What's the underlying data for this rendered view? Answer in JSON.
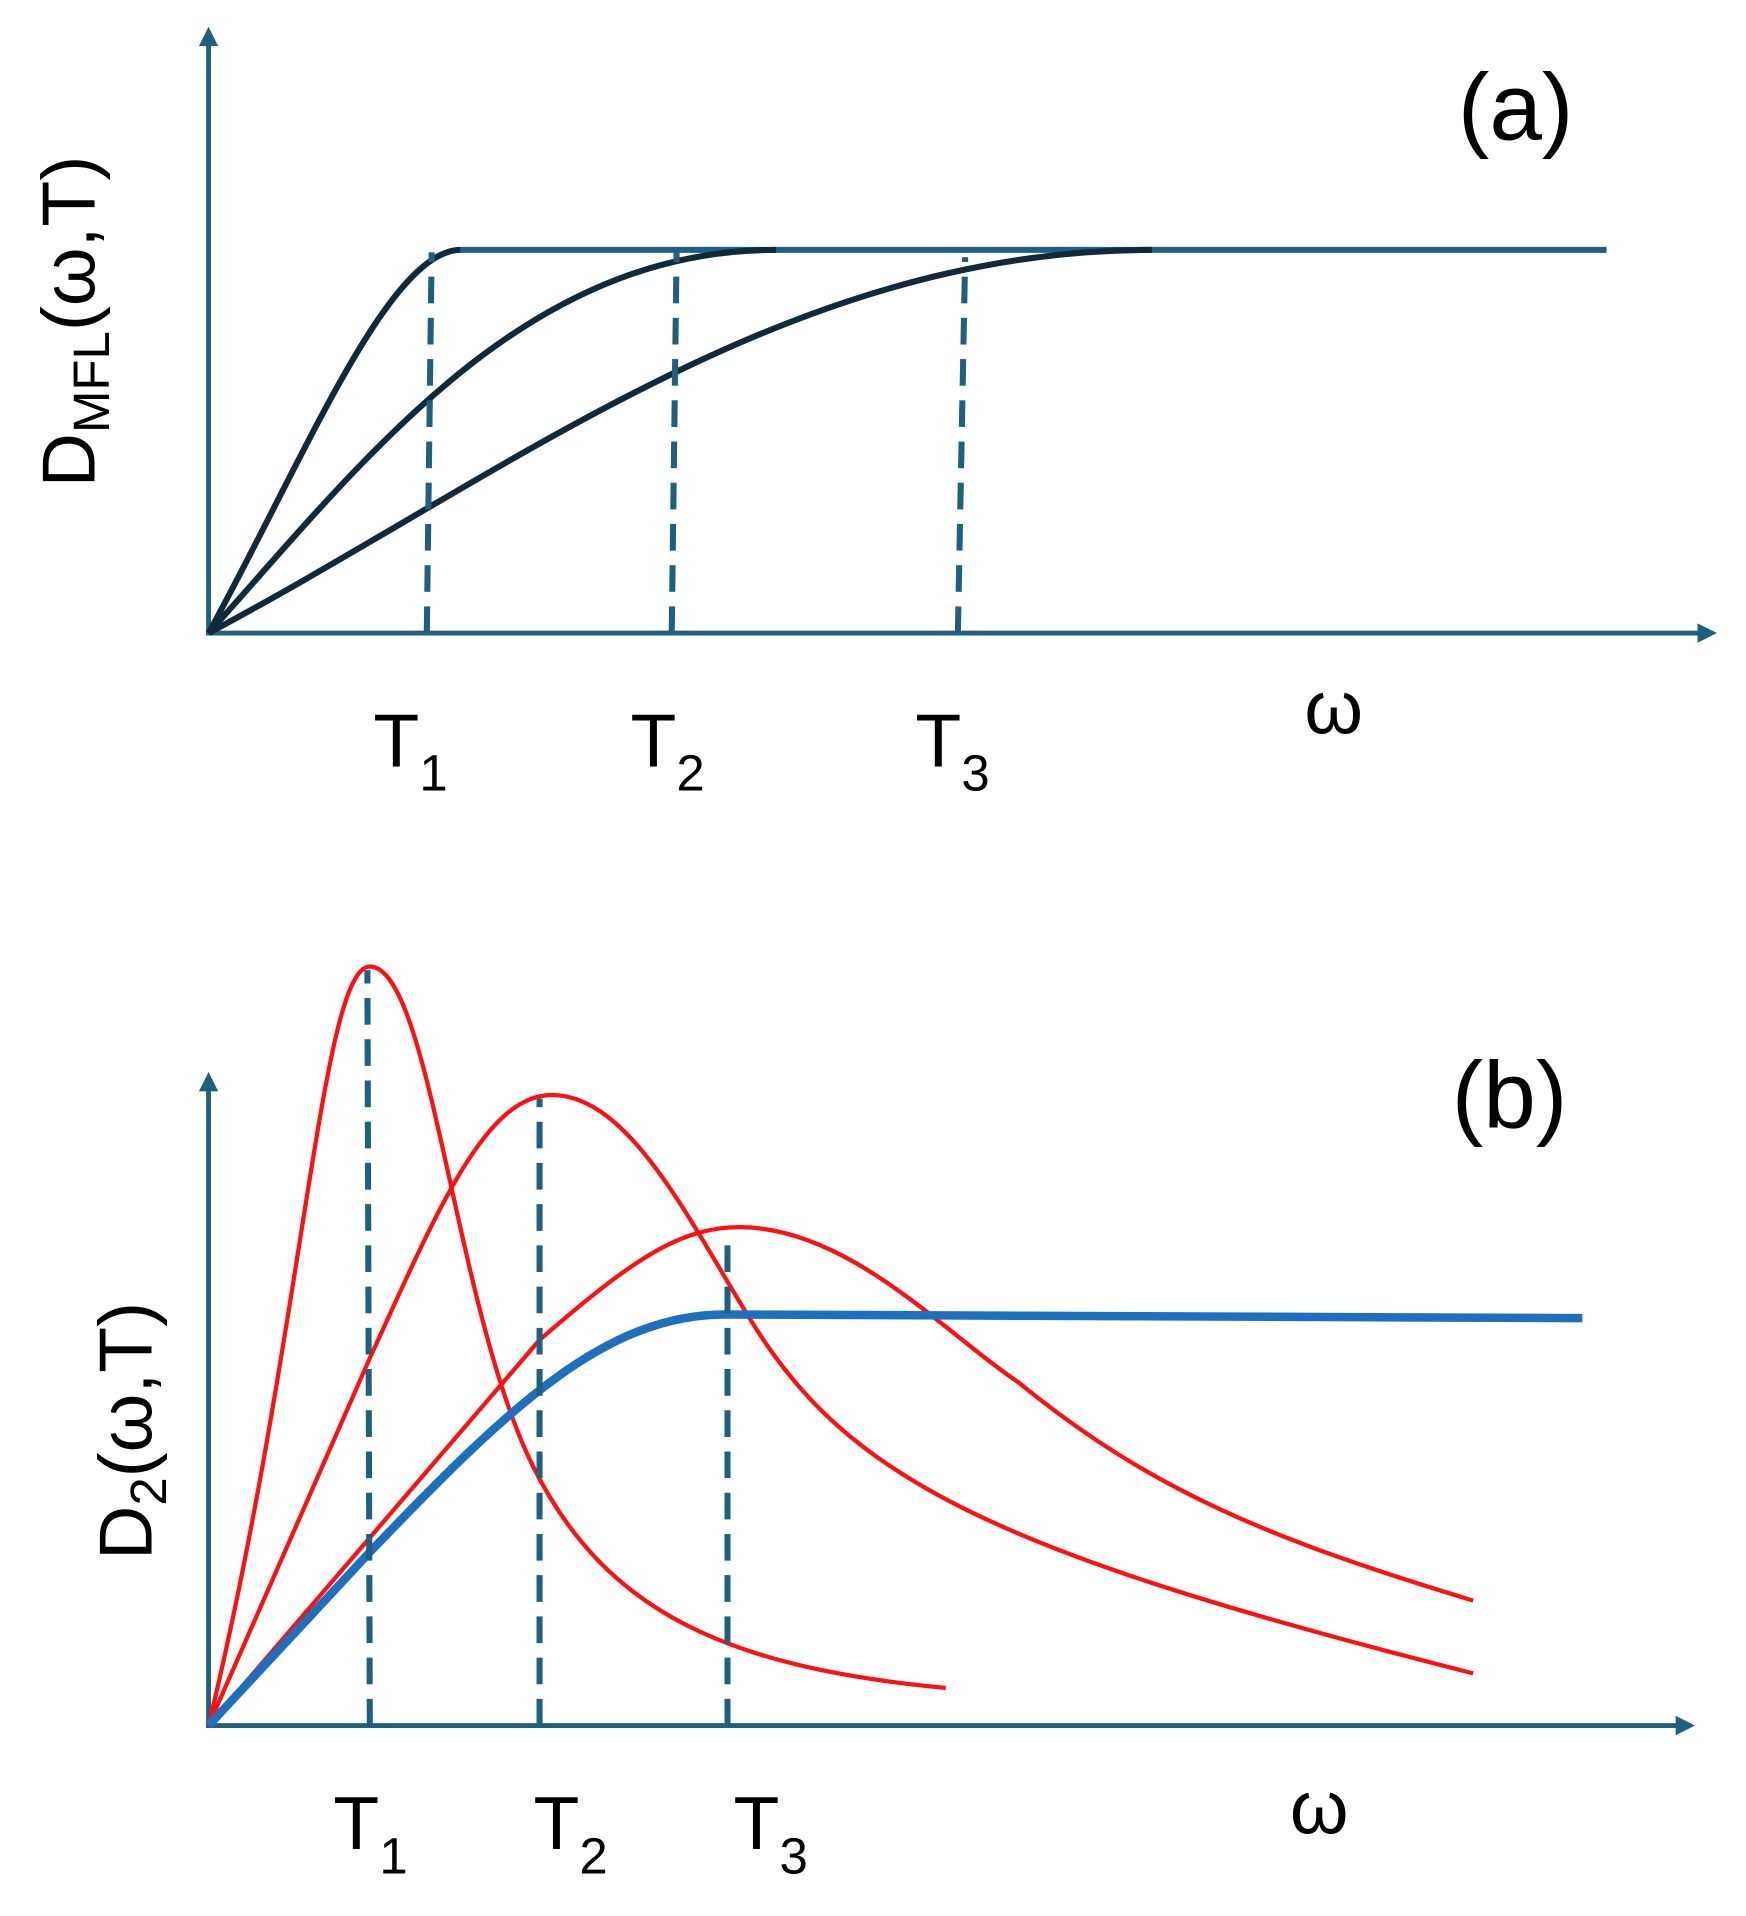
{
  "panels": [
    {
      "label": "(a)",
      "y_label": {
        "main": "D",
        "sub": "MFL",
        "args": "(ω,T)"
      },
      "x_label": "ω",
      "markers": [
        {
          "main": "T",
          "sub": "1"
        },
        {
          "main": "T",
          "sub": "2"
        },
        {
          "main": "T",
          "sub": "3"
        }
      ]
    },
    {
      "label": "(b)",
      "y_label": {
        "main": "D",
        "sub": "2",
        "args": "(ω,T)"
      },
      "x_label": "ω",
      "markers": [
        {
          "main": "T",
          "sub": "1"
        },
        {
          "main": "T",
          "sub": "2"
        },
        {
          "main": "T",
          "sub": "3"
        }
      ]
    }
  ]
}
